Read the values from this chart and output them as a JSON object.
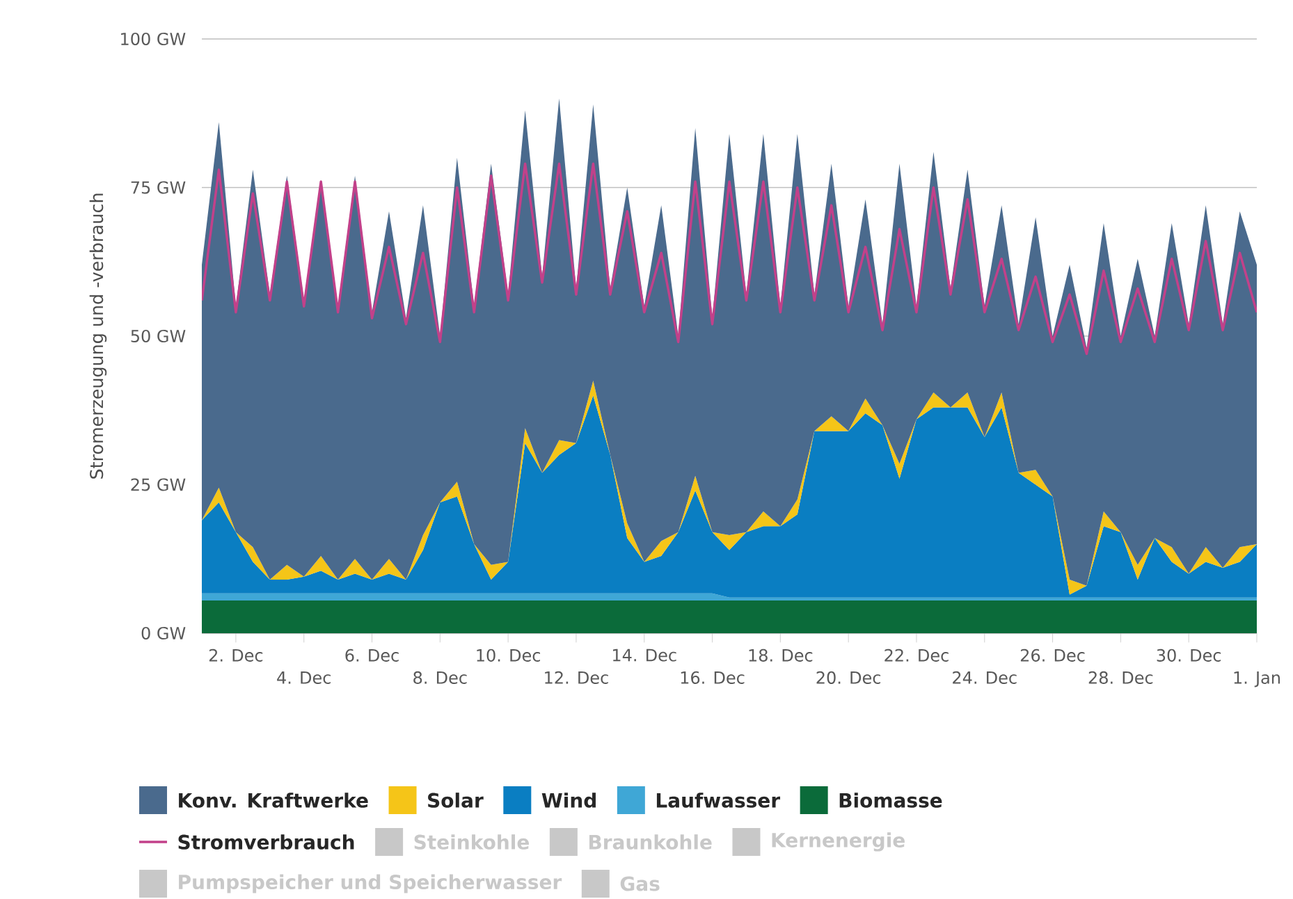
{
  "chart_data": {
    "type": "area",
    "stacked": true,
    "ylabel": "Stromerzeugung und -verbrauch",
    "categories": [
      null,
      null,
      "2. Dec",
      null,
      null,
      null,
      "4. Dec",
      null,
      null,
      null,
      "6. Dec",
      null,
      null,
      null,
      "8. Dec",
      null,
      null,
      null,
      "10. Dec",
      null,
      null,
      null,
      "12. Dec",
      null,
      null,
      null,
      "14. Dec",
      null,
      null,
      null,
      "16. Dec",
      null,
      null,
      null,
      "18. Dec",
      null,
      null,
      null,
      "20. Dec",
      null,
      null,
      null,
      "22. Dec",
      null,
      null,
      null,
      "24. Dec",
      null,
      null,
      null,
      "26. Dec",
      null,
      null,
      null,
      "28. Dec",
      null,
      null,
      null,
      "30. Dec",
      null,
      null,
      null,
      "1. Jan"
    ],
    "ylim": [
      0,
      100
    ],
    "yticks": [
      {
        "value": 0,
        "label": "0 GW"
      },
      {
        "value": 25,
        "label": "25 GW"
      },
      {
        "value": 50,
        "label": "50 GW"
      },
      {
        "value": 75,
        "label": "75 GW"
      },
      {
        "value": 100,
        "label": "100 GW"
      }
    ],
    "grid": "y",
    "legend": "bottom",
    "series": [
      {
        "name": "Biomasse",
        "color": "#0b6b3a",
        "values": [
          5.5,
          5.5,
          5.5,
          5.5,
          5.5,
          5.5,
          5.5,
          5.5,
          5.5,
          5.5,
          5.5,
          5.5,
          5.5,
          5.5,
          5.5,
          5.5,
          5.5,
          5.5,
          5.5,
          5.5,
          5.5,
          5.5,
          5.5,
          5.5,
          5.5,
          5.5,
          5.5,
          5.5,
          5.5,
          5.5,
          5.5,
          5.5,
          5.5,
          5.5,
          5.5,
          5.5,
          5.5,
          5.5,
          5.5,
          5.5,
          5.5,
          5.5,
          5.5,
          5.5,
          5.5,
          5.5,
          5.5,
          5.5,
          5.5,
          5.5,
          5.5,
          5.5,
          5.5,
          5.5,
          5.5,
          5.5,
          5.5,
          5.5,
          5.5,
          5.5,
          5.5,
          5.5,
          5.5
        ]
      },
      {
        "name": "Laufwasser",
        "color": "#3fa7d6",
        "values": [
          1.2,
          1.2,
          1.2,
          1.2,
          1.2,
          1.2,
          1.2,
          1.2,
          1.2,
          1.2,
          1.2,
          1.2,
          1.2,
          1.2,
          1.2,
          1.2,
          1.2,
          1.2,
          1.2,
          1.2,
          1.2,
          1.2,
          1.2,
          1.2,
          1.2,
          1.2,
          1.2,
          1.2,
          1.2,
          1.2,
          1.2,
          0.5,
          0.5,
          0.5,
          0.5,
          0.5,
          0.5,
          0.5,
          0.5,
          0.5,
          0.5,
          0.5,
          0.5,
          0.5,
          0.5,
          0.5,
          0.5,
          0.5,
          0.5,
          0.5,
          0.5,
          0.5,
          0.5,
          0.5,
          0.5,
          0.5,
          0.5,
          0.5,
          0.5,
          0.5,
          0.5,
          0.5,
          0.5
        ]
      },
      {
        "name": "Wind",
        "color": "#0a7ec2",
        "values": [
          12.3,
          15.3,
          10.3,
          5.3,
          2.3,
          2.3,
          2.8,
          3.8,
          2.3,
          3.3,
          2.3,
          3.3,
          2.3,
          7.3,
          15.3,
          16.3,
          8.3,
          2.3,
          5.3,
          25.3,
          20.3,
          23.3,
          25.3,
          33.3,
          23.3,
          9.3,
          5.3,
          6.3,
          10.3,
          17.3,
          10.3,
          8,
          11,
          12,
          12,
          14,
          28,
          28,
          28,
          31,
          29,
          20,
          30,
          32,
          32,
          32,
          27,
          32,
          21,
          19,
          17,
          0.5,
          2,
          12,
          11,
          3,
          10,
          6,
          4,
          6,
          5,
          6,
          9
        ]
      },
      {
        "name": "Solar",
        "color": "#f5c518",
        "values": [
          0,
          2.5,
          0,
          2.5,
          0,
          2.5,
          0,
          2.5,
          0,
          2.5,
          0,
          2.5,
          0,
          2.5,
          0,
          2.5,
          0,
          2.5,
          0,
          2.5,
          0,
          2.5,
          0,
          2.5,
          0,
          2.5,
          0,
          2.5,
          0,
          2.5,
          0,
          2.5,
          0,
          2.5,
          0,
          2.5,
          0,
          2.5,
          0,
          2.5,
          0,
          2.5,
          0,
          2.5,
          0,
          2.5,
          0,
          2.5,
          0,
          2.5,
          0,
          2.5,
          0,
          2.5,
          0,
          2.5,
          0,
          2.5,
          0,
          2.5,
          0,
          2.5,
          0
        ]
      },
      {
        "name": "Konv. Kraftwerke",
        "color": "#4a6a8d",
        "values": [
          43,
          61.5,
          38,
          63.5,
          48,
          65.5,
          46.5,
          63,
          46,
          64.5,
          45,
          58.5,
          44,
          55.5,
          28,
          54.5,
          40,
          67.5,
          45,
          53.5,
          33,
          57.5,
          26,
          46.5,
          28,
          56.5,
          43,
          56.5,
          33,
          58.5,
          36,
          67.5,
          40,
          63.5,
          37,
          61.5,
          23,
          42.5,
          21,
          33.5,
          17,
          50.5,
          19,
          40.5,
          20,
          37.5,
          22,
          31.5,
          25,
          42.5,
          27,
          53,
          40,
          48.5,
          33,
          51.5,
          34,
          54.5,
          42,
          57.5,
          41,
          56.5,
          47
        ]
      },
      {
        "name": "Stromverbrauch",
        "type": "line",
        "color": "#c2418a",
        "values": [
          56,
          78,
          54,
          74,
          56,
          76,
          55,
          76,
          54,
          76,
          53,
          65,
          52,
          64,
          49,
          75,
          54,
          77,
          56,
          79,
          59,
          79,
          57,
          79,
          57,
          71,
          54,
          64,
          49,
          76,
          52,
          76,
          56,
          76,
          54,
          75,
          56,
          72,
          54,
          65,
          51,
          68,
          54,
          75,
          57,
          73,
          54,
          63,
          51,
          60,
          49,
          57,
          47,
          61,
          49,
          58,
          49,
          63,
          51,
          66,
          51,
          64,
          54
        ]
      },
      {
        "name": "Steinkohle",
        "color": "#c8c8c8",
        "values": [
          null,
          null,
          null,
          null,
          null,
          null,
          null,
          null,
          null,
          null,
          null,
          null,
          null,
          null,
          null,
          null,
          null,
          null,
          null,
          null,
          null,
          null,
          null,
          null,
          null,
          null,
          null,
          null,
          null,
          null,
          null,
          null,
          null,
          null,
          null,
          null,
          null,
          null,
          null,
          null,
          null,
          null,
          null,
          null,
          null,
          null,
          null,
          null,
          null,
          null,
          null,
          null,
          null,
          null,
          null,
          null,
          null,
          null,
          null,
          null,
          null,
          null,
          null
        ]
      },
      {
        "name": "Braunkohle",
        "color": "#c8c8c8",
        "values": [
          null,
          null,
          null,
          null,
          null,
          null,
          null,
          null,
          null,
          null,
          null,
          null,
          null,
          null,
          null,
          null,
          null,
          null,
          null,
          null,
          null,
          null,
          null,
          null,
          null,
          null,
          null,
          null,
          null,
          null,
          null,
          null,
          null,
          null,
          null,
          null,
          null,
          null,
          null,
          null,
          null,
          null,
          null,
          null,
          null,
          null,
          null,
          null,
          null,
          null,
          null,
          null,
          null,
          null,
          null,
          null,
          null,
          null,
          null,
          null,
          null,
          null,
          null
        ]
      },
      {
        "name": "Kernenergie",
        "color": "#c8c8c8",
        "values": [
          null,
          null,
          null,
          null,
          null,
          null,
          null,
          null,
          null,
          null,
          null,
          null,
          null,
          null,
          null,
          null,
          null,
          null,
          null,
          null,
          null,
          null,
          null,
          null,
          null,
          null,
          null,
          null,
          null,
          null,
          null,
          null,
          null,
          null,
          null,
          null,
          null,
          null,
          null,
          null,
          null,
          null,
          null,
          null,
          null,
          null,
          null,
          null,
          null,
          null,
          null,
          null,
          null,
          null,
          null,
          null,
          null,
          null,
          null,
          null,
          null,
          null,
          null
        ]
      },
      {
        "name": "Pumpspeicher und Speicherwasser",
        "color": "#c8c8c8",
        "values": [
          null,
          null,
          null,
          null,
          null,
          null,
          null,
          null,
          null,
          null,
          null,
          null,
          null,
          null,
          null,
          null,
          null,
          null,
          null,
          null,
          null,
          null,
          null,
          null,
          null,
          null,
          null,
          null,
          null,
          null,
          null,
          null,
          null,
          null,
          null,
          null,
          null,
          null,
          null,
          null,
          null,
          null,
          null,
          null,
          null,
          null,
          null,
          null,
          null,
          null,
          null,
          null,
          null,
          null,
          null,
          null,
          null,
          null,
          null,
          null,
          null,
          null,
          null
        ]
      },
      {
        "name": "Gas",
        "color": "#c8c8c8",
        "values": [
          null,
          null,
          null,
          null,
          null,
          null,
          null,
          null,
          null,
          null,
          null,
          null,
          null,
          null,
          null,
          null,
          null,
          null,
          null,
          null,
          null,
          null,
          null,
          null,
          null,
          null,
          null,
          null,
          null,
          null,
          null,
          null,
          null,
          null,
          null,
          null,
          null,
          null,
          null,
          null,
          null,
          null,
          null,
          null,
          null,
          null,
          null,
          null,
          null,
          null,
          null,
          null,
          null,
          null,
          null,
          null,
          null,
          null,
          null,
          null,
          null,
          null,
          null
        ]
      }
    ]
  }
}
